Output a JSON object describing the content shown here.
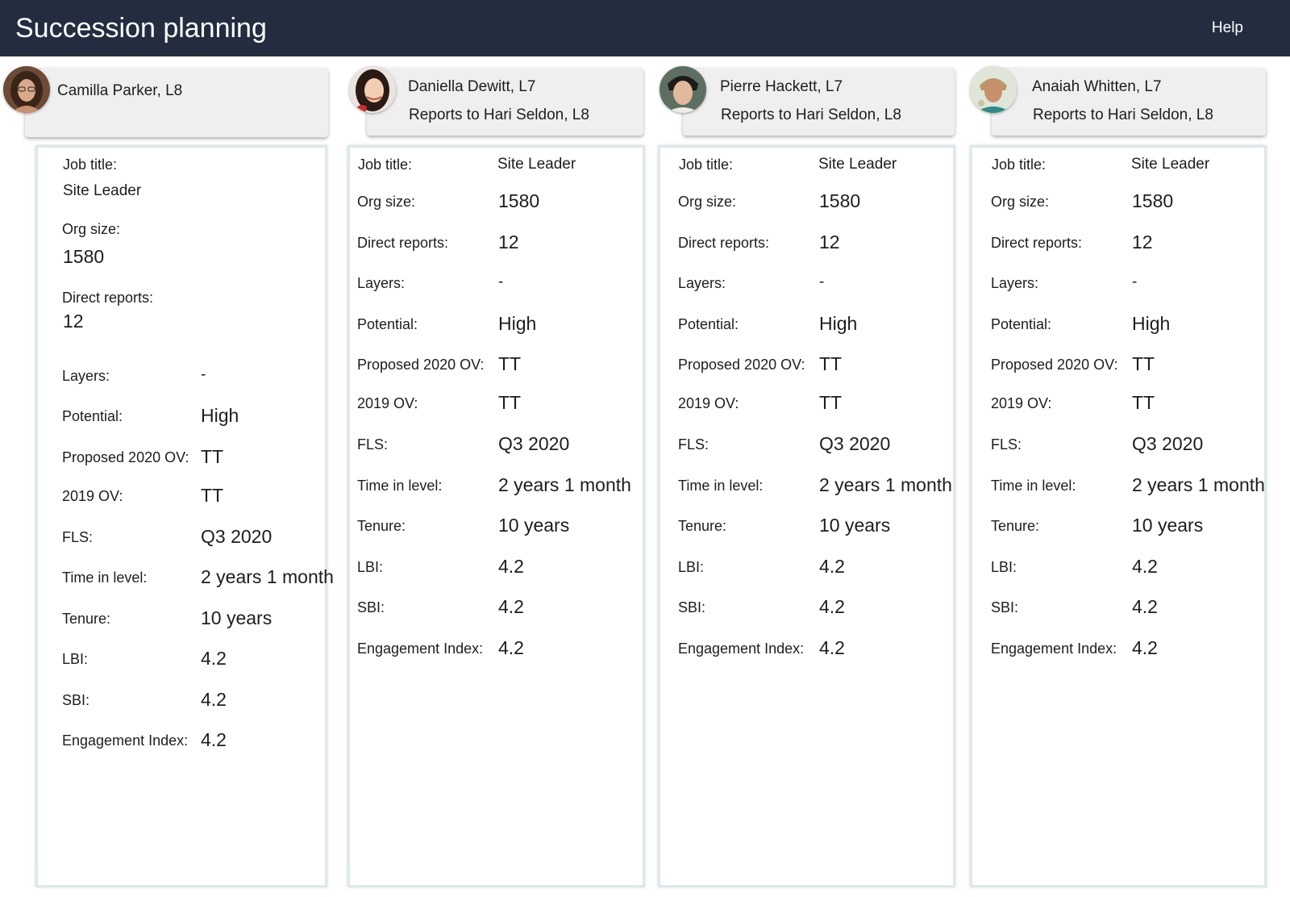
{
  "header": {
    "title": "Succession planning",
    "help_label": "Help"
  },
  "candidates": [
    {
      "name": "Camilla Parker, L8",
      "reports_to": "",
      "avatar": "avatar-photo",
      "job_title_label": "Job title:",
      "job_title": "Site Leader",
      "org_size_label": "Org size:",
      "org_size": "1580",
      "direct_reports_label": "Direct reports:",
      "direct_reports": "12",
      "layers_label": "Layers:",
      "layers": "-",
      "potential_label": "Potential:",
      "potential": "High",
      "proposed_ov_label": "Proposed 2020 OV:",
      "proposed_ov": "TT",
      "ov_2019_label": "2019 OV:",
      "ov_2019": "TT",
      "fls_label": "FLS:",
      "fls": "Q3 2020",
      "time_in_level_label": "Time in level:",
      "time_in_level": "2 years 1 month",
      "tenure_label": "Tenure:",
      "tenure": "10 years",
      "lbi_label": "LBI:",
      "lbi": "4.2",
      "sbi_label": "SBI:",
      "sbi": "4.2",
      "engagement_label": "Engagement Index:",
      "engagement": "4.2"
    },
    {
      "name": "Daniella Dewitt, L7",
      "reports_to": "Reports to Hari Seldon, L8",
      "avatar": "avatar-photo",
      "job_title_label": "Job title:",
      "job_title": "Site Leader",
      "org_size_label": "Org size:",
      "org_size": "1580",
      "direct_reports_label": "Direct reports:",
      "direct_reports": "12",
      "layers_label": "Layers:",
      "layers": "-",
      "potential_label": "Potential:",
      "potential": "High",
      "proposed_ov_label": "Proposed 2020 OV:",
      "proposed_ov": "TT",
      "ov_2019_label": "2019 OV:",
      "ov_2019": "TT",
      "fls_label": "FLS:",
      "fls": "Q3 2020",
      "time_in_level_label": "Time in level:",
      "time_in_level": "2 years 1 month",
      "tenure_label": "Tenure:",
      "tenure": "10 years",
      "lbi_label": "LBI:",
      "lbi": "4.2",
      "sbi_label": "SBI:",
      "sbi": "4.2",
      "engagement_label": "Engagement Index:",
      "engagement": "4.2"
    },
    {
      "name": "Pierre Hackett, L7",
      "reports_to": "Reports to Hari Seldon, L8",
      "avatar": "avatar-photo",
      "job_title_label": "Job title:",
      "job_title": "Site Leader",
      "org_size_label": "Org size:",
      "org_size": "1580",
      "direct_reports_label": "Direct reports:",
      "direct_reports": "12",
      "layers_label": "Layers:",
      "layers": "-",
      "potential_label": "Potential:",
      "potential": "High",
      "proposed_ov_label": "Proposed 2020 OV:",
      "proposed_ov": "TT",
      "ov_2019_label": "2019 OV:",
      "ov_2019": "TT",
      "fls_label": "FLS:",
      "fls": "Q3 2020",
      "time_in_level_label": "Time in level:",
      "time_in_level": "2 years 1 month",
      "tenure_label": "Tenure:",
      "tenure": "10 years",
      "lbi_label": "LBI:",
      "lbi": "4.2",
      "sbi_label": "SBI:",
      "sbi": "4.2",
      "engagement_label": "Engagement Index:",
      "engagement": "4.2"
    },
    {
      "name": "Anaiah Whitten, L7",
      "reports_to": "Reports to Hari Seldon, L8",
      "avatar": "avatar-photo",
      "job_title_label": "Job title:",
      "job_title": "Site Leader",
      "org_size_label": "Org size:",
      "org_size": "1580",
      "direct_reports_label": "Direct reports:",
      "direct_reports": "12",
      "layers_label": "Layers:",
      "layers": "-",
      "potential_label": "Potential:",
      "potential": "High",
      "proposed_ov_label": "Proposed 2020 OV:",
      "proposed_ov": "TT",
      "ov_2019_label": "2019 OV:",
      "ov_2019": "TT",
      "fls_label": "FLS:",
      "fls": "Q3 2020",
      "time_in_level_label": "Time in level:",
      "time_in_level": "2 years 1 month",
      "tenure_label": "Tenure:",
      "tenure": "10 years",
      "lbi_label": "LBI:",
      "lbi": "4.2",
      "sbi_label": "SBI:",
      "sbi": "4.2",
      "engagement_label": "Engagement Index:",
      "engagement": "4.2"
    }
  ],
  "colors": {
    "topbar": "#232d3f",
    "card_header": "#efefef",
    "panel_border": "#dfe8ea"
  }
}
